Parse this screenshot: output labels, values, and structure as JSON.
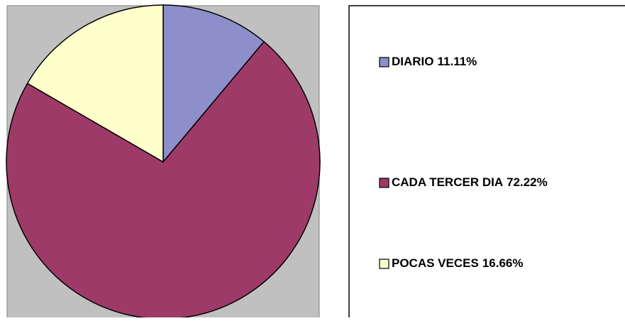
{
  "chart_data": {
    "type": "pie",
    "categories": [
      "DIARIO",
      "CADA TERCER DIA",
      "POCAS VECES"
    ],
    "values": [
      11.11,
      72.22,
      16.66
    ],
    "value_labels": [
      "11.11%",
      "72.22%",
      "16.66%"
    ],
    "colors": [
      "#8c8fc9",
      "#9e3a68",
      "#ffffcc"
    ]
  }
}
